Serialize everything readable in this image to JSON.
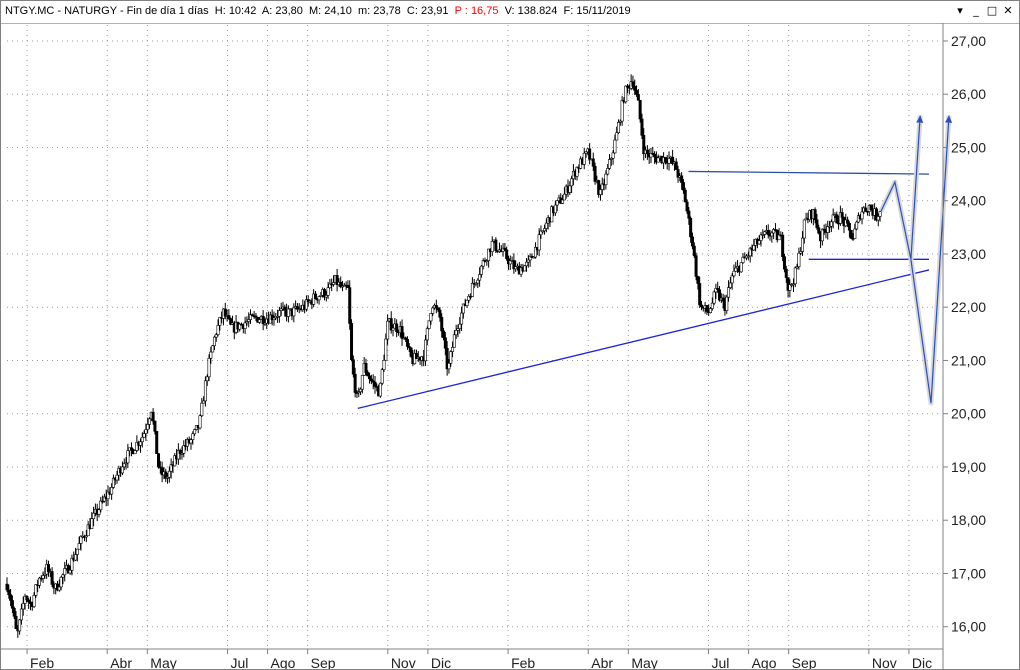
{
  "header": {
    "ticker": "NTGY.MC",
    "name": "NATURGY",
    "period": "Fin de día 1 días",
    "high_label": "H:",
    "high_value": "10:42",
    "open_label": "A:",
    "open_value": "23,80",
    "max_label": "M:",
    "max_value": "24,10",
    "min_label": "m:",
    "min_value": "23,78",
    "close_label": "C:",
    "close_value": "23,91",
    "change_label": "P :",
    "change_value": "16,75",
    "volume_label": "V:",
    "volume_value": "138.824",
    "date_label": "F:",
    "date_value": "15/11/2019",
    "pct_color": "#ff0000"
  },
  "window_buttons": {
    "menu": "▾",
    "minimize": "_",
    "maximize": "□",
    "close": "✕"
  },
  "chart_data": {
    "type": "candlestick",
    "ylim": [
      15.6,
      27.3
    ],
    "ytick_labels": [
      "16,00",
      "17,00",
      "18,00",
      "19,00",
      "20,00",
      "21,00",
      "22,00",
      "23,00",
      "24,00",
      "25,00",
      "26,00",
      "27,00"
    ],
    "ytick_values": [
      16,
      17,
      18,
      19,
      20,
      21,
      22,
      23,
      24,
      25,
      26,
      27
    ],
    "x_month_labels": [
      "Feb",
      "Abr",
      "May",
      "Jul",
      "Ago",
      "Sep",
      "Nov",
      "Dic",
      "Feb",
      "Abr",
      "May",
      "Jul",
      "Ago",
      "Sep",
      "Nov",
      "Dic"
    ],
    "x_month_positions": [
      0.5,
      2.5,
      3.5,
      5.5,
      6.5,
      7.5,
      9.5,
      10.5,
      12.5,
      14.5,
      15.5,
      17.5,
      18.5,
      19.5,
      21.5,
      22.5
    ],
    "x_range": [
      0,
      23.3
    ],
    "grid": true,
    "price_path": [
      [
        0.0,
        16.8
      ],
      [
        0.1,
        16.5
      ],
      [
        0.25,
        15.8
      ],
      [
        0.45,
        16.6
      ],
      [
        0.6,
        16.4
      ],
      [
        0.8,
        16.9
      ],
      [
        1.0,
        17.1
      ],
      [
        1.2,
        16.7
      ],
      [
        1.35,
        16.9
      ],
      [
        1.6,
        17.2
      ],
      [
        1.9,
        17.7
      ],
      [
        2.2,
        18.1
      ],
      [
        2.6,
        18.6
      ],
      [
        2.9,
        19.1
      ],
      [
        3.1,
        19.3
      ],
      [
        3.4,
        19.6
      ],
      [
        3.6,
        20.1
      ],
      [
        3.8,
        18.9
      ],
      [
        4.0,
        18.8
      ],
      [
        4.3,
        19.3
      ],
      [
        4.6,
        19.5
      ],
      [
        4.8,
        19.8
      ],
      [
        5.0,
        20.8
      ],
      [
        5.2,
        21.5
      ],
      [
        5.4,
        21.9
      ],
      [
        5.6,
        21.6
      ],
      [
        5.9,
        21.7
      ],
      [
        6.2,
        21.8
      ],
      [
        6.5,
        21.8
      ],
      [
        6.8,
        21.9
      ],
      [
        7.1,
        21.9
      ],
      [
        7.4,
        22.0
      ],
      [
        7.7,
        22.2
      ],
      [
        8.0,
        22.3
      ],
      [
        8.2,
        22.5
      ],
      [
        8.4,
        22.3
      ],
      [
        8.5,
        22.4
      ],
      [
        8.6,
        20.9
      ],
      [
        8.75,
        20.2
      ],
      [
        8.9,
        20.9
      ],
      [
        9.1,
        20.6
      ],
      [
        9.3,
        20.4
      ],
      [
        9.5,
        21.7
      ],
      [
        9.8,
        21.6
      ],
      [
        10.1,
        21.0
      ],
      [
        10.4,
        21.1
      ],
      [
        10.6,
        22.1
      ],
      [
        10.8,
        21.8
      ],
      [
        11.0,
        20.8
      ],
      [
        11.2,
        21.6
      ],
      [
        11.5,
        22.2
      ],
      [
        11.8,
        22.7
      ],
      [
        12.1,
        23.2
      ],
      [
        12.4,
        23.0
      ],
      [
        12.7,
        22.7
      ],
      [
        13.0,
        22.8
      ],
      [
        13.3,
        23.3
      ],
      [
        13.6,
        23.8
      ],
      [
        13.9,
        24.1
      ],
      [
        14.2,
        24.6
      ],
      [
        14.5,
        24.9
      ],
      [
        14.8,
        24.1
      ],
      [
        15.0,
        24.6
      ],
      [
        15.2,
        25.2
      ],
      [
        15.4,
        26.0
      ],
      [
        15.6,
        26.3
      ],
      [
        15.75,
        25.8
      ],
      [
        15.9,
        24.9
      ],
      [
        16.2,
        24.8
      ],
      [
        16.5,
        24.8
      ],
      [
        16.7,
        24.6
      ],
      [
        16.9,
        24.1
      ],
      [
        17.1,
        23.2
      ],
      [
        17.3,
        22.0
      ],
      [
        17.5,
        21.9
      ],
      [
        17.7,
        22.3
      ],
      [
        17.9,
        22.0
      ],
      [
        18.1,
        22.6
      ],
      [
        18.4,
        22.9
      ],
      [
        18.7,
        23.2
      ],
      [
        19.0,
        23.4
      ],
      [
        19.3,
        23.3
      ],
      [
        19.5,
        22.3
      ],
      [
        19.7,
        22.7
      ],
      [
        19.9,
        23.6
      ],
      [
        20.1,
        23.8
      ],
      [
        20.3,
        23.3
      ],
      [
        20.5,
        23.6
      ],
      [
        20.8,
        23.7
      ],
      [
        21.1,
        23.3
      ],
      [
        21.3,
        23.8
      ],
      [
        21.5,
        23.9
      ],
      [
        21.7,
        23.7
      ],
      [
        21.8,
        23.9
      ]
    ],
    "trendlines": [
      {
        "kind": "support",
        "color": "#1f24d6",
        "points": [
          [
            8.75,
            20.1
          ],
          [
            23.0,
            22.7
          ]
        ]
      },
      {
        "kind": "resistance",
        "color": "#2d4fa8",
        "points": [
          [
            17.0,
            24.55
          ],
          [
            23.0,
            24.5
          ]
        ]
      },
      {
        "kind": "neckline",
        "color": "#1f24d6",
        "points": [
          [
            20.0,
            22.9
          ],
          [
            23.0,
            22.9
          ]
        ]
      }
    ],
    "projections": [
      {
        "color": "#2b4fc0",
        "points": [
          [
            21.8,
            23.8
          ],
          [
            22.15,
            24.35
          ],
          [
            22.55,
            22.9
          ],
          [
            22.78,
            25.6
          ]
        ]
      },
      {
        "color": "#2b4fc0",
        "points": [
          [
            22.55,
            22.9
          ],
          [
            23.05,
            20.2
          ],
          [
            23.5,
            25.6
          ]
        ]
      }
    ]
  }
}
